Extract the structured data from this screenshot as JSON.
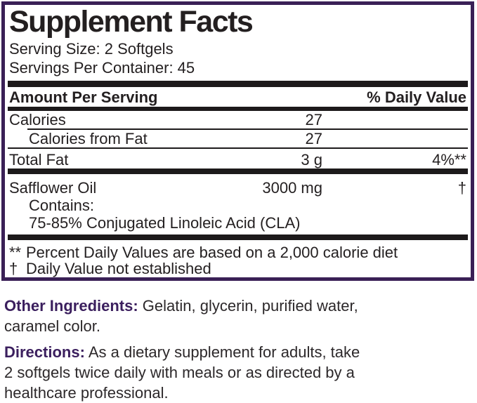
{
  "colors": {
    "border_purple": "#3a2056",
    "label_purple": "#3b1f5e",
    "bar_black": "#1d1a1b",
    "text_black": "#231f20"
  },
  "panel": {
    "title": "Supplement Facts",
    "serving_size": "Serving Size: 2 Softgels",
    "servings_per_container": "Servings Per Container: 45",
    "header": {
      "amount": "Amount Per Serving",
      "daily_value": "% Daily Value"
    },
    "rows": [
      {
        "label": "Calories",
        "amount": "27",
        "dv": ""
      },
      {
        "label": "Calories from Fat",
        "amount": "27",
        "dv": ""
      },
      {
        "label": "Total Fat",
        "amount": "3 g",
        "dv": "4%**"
      },
      {
        "label": "Safflower Oil",
        "amount": "3000 mg",
        "dv": "†"
      }
    ],
    "sub_lines": [
      "Contains:",
      "75-85% Conjugated Linoleic Acid (CLA)"
    ],
    "footnotes": [
      {
        "marker": "**",
        "text": "Percent Daily Values are based on a 2,000 calorie diet"
      },
      {
        "marker": "†",
        "text": "Daily Value not established"
      }
    ]
  },
  "other_ingredients": {
    "label": "Other Ingredients:",
    "line1_rest": " Gelatin, glycerin, purified water,",
    "line2": "caramel color."
  },
  "directions": {
    "label": "Directions:",
    "line1_rest": " As a dietary supplement for adults, take",
    "line2": "2 softgels twice daily with meals or as directed by a",
    "line3": "healthcare professional."
  }
}
